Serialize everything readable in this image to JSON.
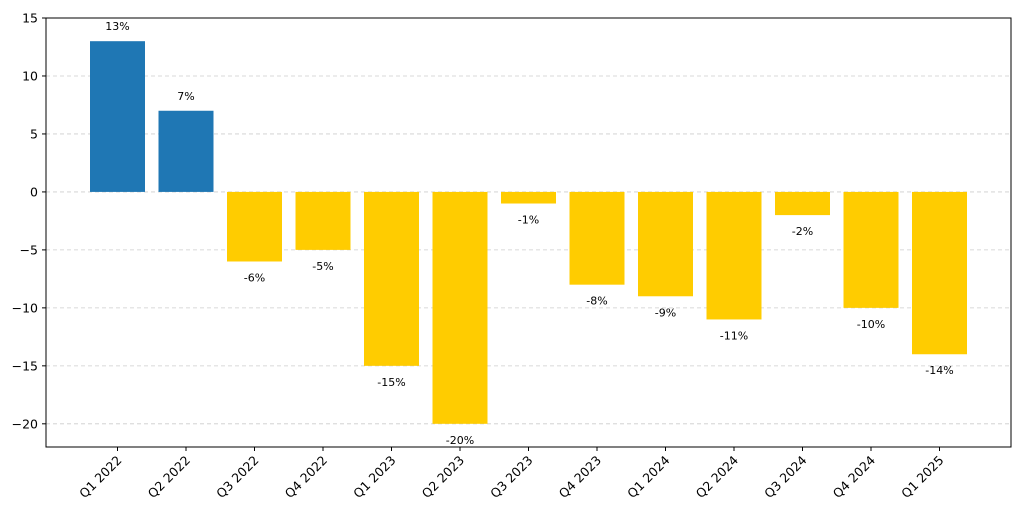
{
  "chart_data": {
    "type": "bar",
    "title": "",
    "xlabel": "",
    "ylabel": "",
    "categories": [
      "Q1 2022",
      "Q2 2022",
      "Q3 2022",
      "Q4 2022",
      "Q1 2023",
      "Q2 2023",
      "Q3 2023",
      "Q4 2023",
      "Q1 2024",
      "Q2 2024",
      "Q3 2024",
      "Q4 2024",
      "Q1 2025"
    ],
    "values": [
      13,
      7,
      -6,
      -5,
      -15,
      -20,
      -1,
      -8,
      -9,
      -11,
      -2,
      -10,
      -14
    ],
    "data_labels": [
      "13%",
      "7%",
      "-6%",
      "-5%",
      "-15%",
      "-20%",
      "-1%",
      "-8%",
      "-9%",
      "-11%",
      "-2%",
      "-10%",
      "-14%"
    ],
    "ylim": [
      -22,
      15
    ],
    "yticks": [
      15,
      10,
      5,
      0,
      -5,
      -10,
      -15,
      -20
    ],
    "ytick_labels": [
      "15",
      "10",
      "5",
      "0",
      "−5",
      "−10",
      "−15",
      "−20"
    ],
    "grid": true,
    "colors": {
      "positive": "#1f77b4",
      "negative": "#ffcc00"
    }
  }
}
